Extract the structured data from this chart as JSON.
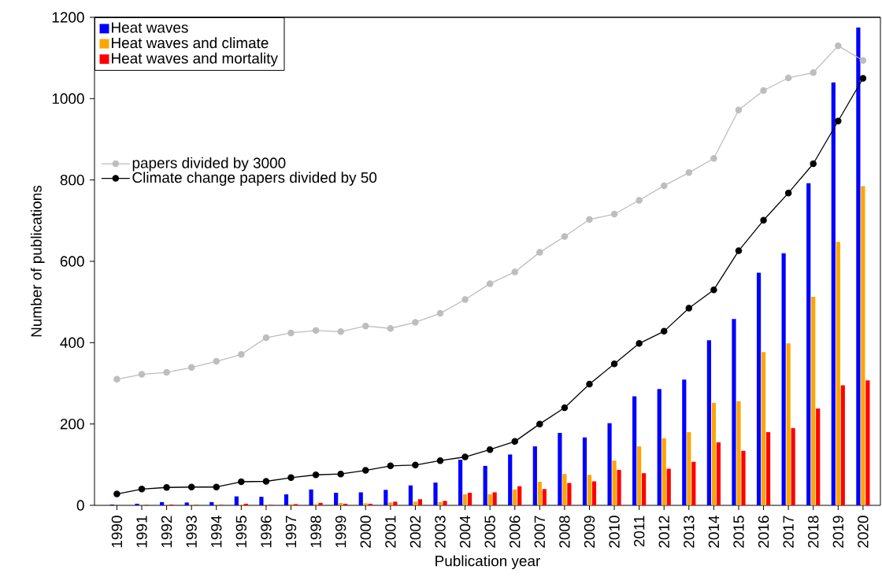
{
  "chart_data": {
    "type": "bar",
    "xlabel": "Publication year",
    "ylabel": "Number of publications",
    "categories": [
      "1990",
      "1991",
      "1992",
      "1993",
      "1994",
      "1995",
      "1996",
      "1997",
      "1998",
      "1999",
      "2000",
      "2001",
      "2002",
      "2003",
      "2004",
      "2005",
      "2006",
      "2007",
      "2008",
      "2009",
      "2010",
      "2011",
      "2012",
      "2013",
      "2014",
      "2015",
      "2016",
      "2017",
      "2018",
      "2019",
      "2020"
    ],
    "ylim": [
      0,
      1200
    ],
    "yticks": [
      0,
      200,
      400,
      600,
      800,
      1000,
      1200
    ],
    "legend": "top left",
    "series": [
      {
        "name": "Heat waves",
        "color": "#0000ff",
        "values": [
          2,
          4,
          8,
          7,
          8,
          22,
          21,
          27,
          39,
          31,
          32,
          38,
          49,
          56,
          112,
          97,
          125,
          145,
          178,
          167,
          202,
          268,
          286,
          309,
          406,
          458,
          572,
          620,
          792,
          1040,
          1175
        ]
      },
      {
        "name": "Heat waves and climate",
        "color": "#ffa500",
        "values": [
          0,
          1,
          1,
          1,
          1,
          2,
          1,
          3,
          3,
          6,
          5,
          7,
          9,
          8,
          27,
          27,
          39,
          58,
          77,
          75,
          110,
          145,
          165,
          180,
          252,
          256,
          377,
          398,
          513,
          648,
          785
        ]
      },
      {
        "name": "Heat waves and mortality",
        "color": "#ff0000",
        "values": [
          0,
          1,
          2,
          1,
          1,
          4,
          1,
          3,
          6,
          4,
          4,
          9,
          15,
          11,
          31,
          32,
          47,
          40,
          55,
          59,
          87,
          79,
          90,
          107,
          155,
          134,
          180,
          190,
          238,
          295,
          307
        ]
      },
      {
        "name": "papers divided by 3000",
        "type": "line",
        "marker": "circle",
        "color": "#bdbdbd",
        "values": [
          310,
          322,
          327,
          339,
          354,
          371,
          412,
          424,
          430,
          427,
          441,
          435,
          450,
          472,
          506,
          545,
          574,
          622,
          661,
          703,
          716,
          750,
          786,
          818,
          853,
          972,
          1020,
          1051,
          1064,
          1130,
          1094
        ]
      },
      {
        "name": "Climate change papers divided by 50",
        "type": "line",
        "marker": "circle",
        "color": "#000000",
        "values": [
          28,
          40,
          44,
          45,
          45,
          58,
          59,
          68,
          75,
          77,
          86,
          97,
          99,
          110,
          119,
          137,
          157,
          200,
          240,
          298,
          348,
          398,
          428,
          485,
          530,
          626,
          701,
          768,
          840,
          945,
          1050
        ]
      }
    ]
  }
}
